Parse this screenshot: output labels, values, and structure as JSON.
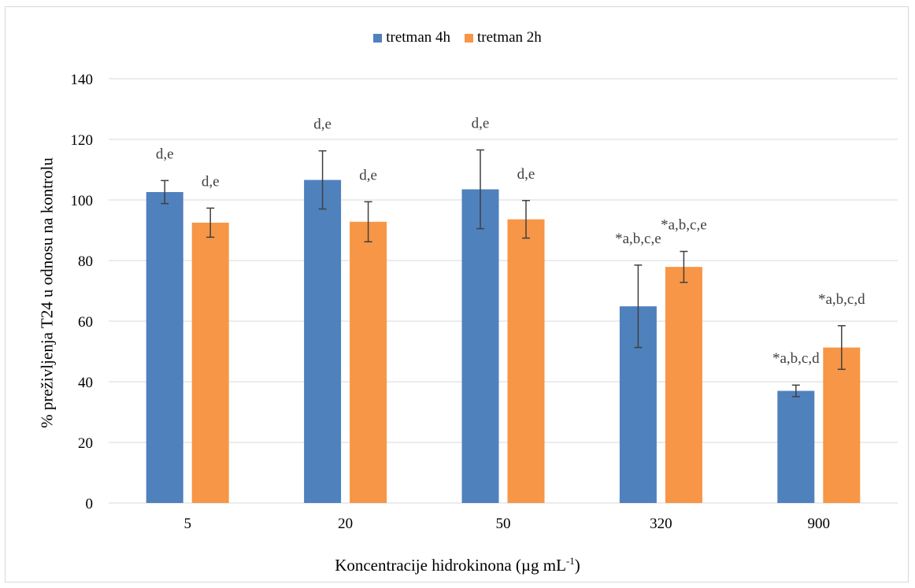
{
  "chart_data": {
    "type": "bar",
    "categories": [
      "5",
      "20",
      "50",
      "320",
      "900"
    ],
    "series": [
      {
        "name": "tretman 4h",
        "color": "#4f81bd",
        "values": [
          102.6,
          106.6,
          103.5,
          64.9,
          37.0
        ],
        "errors": [
          3.8,
          9.6,
          13.0,
          13.6,
          1.9
        ],
        "labels": [
          "d,e",
          "d,e",
          "d,e",
          "*a,b,c,e",
          "*a,b,c,d"
        ]
      },
      {
        "name": "tretman 2h",
        "color": "#f79646",
        "values": [
          92.5,
          92.8,
          93.6,
          77.9,
          51.3
        ],
        "errors": [
          4.8,
          6.6,
          6.2,
          5.1,
          7.2
        ],
        "labels": [
          "d,e",
          "d,e",
          "d,e",
          "*a,b,c,e",
          "*a,b,c,d"
        ]
      }
    ],
    "ylim": [
      0,
      140
    ],
    "yticks": [
      0,
      20,
      40,
      60,
      80,
      100,
      120,
      140
    ],
    "ylabel": "%  preživljenja T24 u odnosu na kontrolu",
    "xlabel_main": "Koncentracije hidrokinona (µg mL",
    "xlabel_sup": "-1",
    "xlabel_end": ")",
    "grid": true,
    "legend_position": "top-center"
  }
}
